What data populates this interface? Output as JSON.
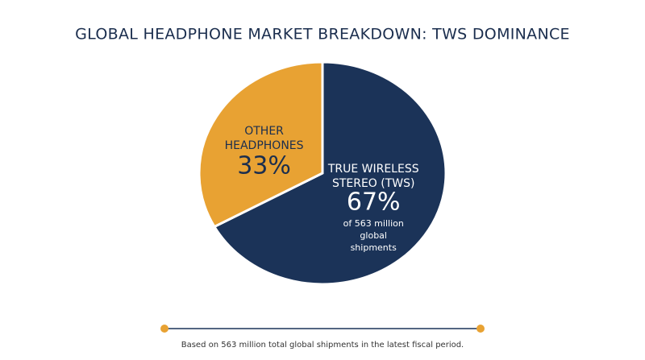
{
  "chart_data": {
    "type": "pie",
    "title": "GLOBAL HEADPHONE MARKET BREAKDOWN: TWS DOMINANCE",
    "categories": [
      "TRUE WIRELESS STEREO (TWS)",
      "OTHER HEADPHONES"
    ],
    "values": [
      67,
      33
    ],
    "value_labels": [
      "67%",
      "33%"
    ],
    "colors": [
      "#1b3358",
      "#e8a233"
    ],
    "annotation": "of 563 million global shipments",
    "footnote": "Based on 563 million total global shipments in the latest fiscal period."
  }
}
